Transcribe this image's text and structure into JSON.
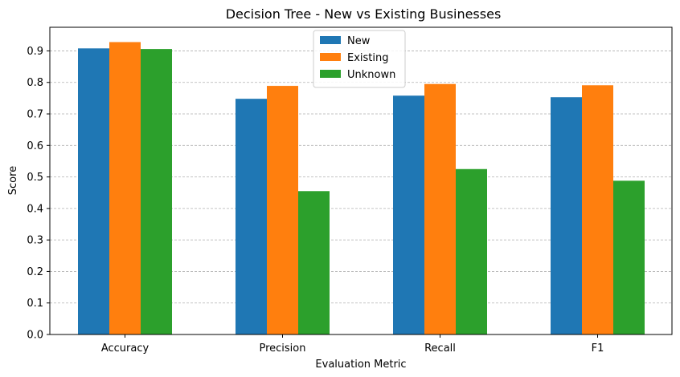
{
  "chart_data": {
    "type": "bar",
    "title": "Decision Tree - New vs Existing Businesses",
    "xlabel": "Evaluation Metric",
    "ylabel": "Score",
    "categories": [
      "Accuracy",
      "Precision",
      "Recall",
      "F1"
    ],
    "series": [
      {
        "name": "New",
        "values": [
          0.908,
          0.748,
          0.758,
          0.753
        ],
        "color": "#1f77b4"
      },
      {
        "name": "Existing",
        "values": [
          0.928,
          0.789,
          0.795,
          0.791
        ],
        "color": "#ff7f0e"
      },
      {
        "name": "Unknown",
        "values": [
          0.906,
          0.455,
          0.525,
          0.488
        ],
        "color": "#2ca02c"
      }
    ],
    "ylim": [
      0,
      0.975
    ],
    "yticks": [
      "0.0",
      "0.1",
      "0.2",
      "0.3",
      "0.4",
      "0.5",
      "0.6",
      "0.7",
      "0.8",
      "0.9"
    ],
    "grid": "y-dashed",
    "legend_position": "top-center"
  }
}
